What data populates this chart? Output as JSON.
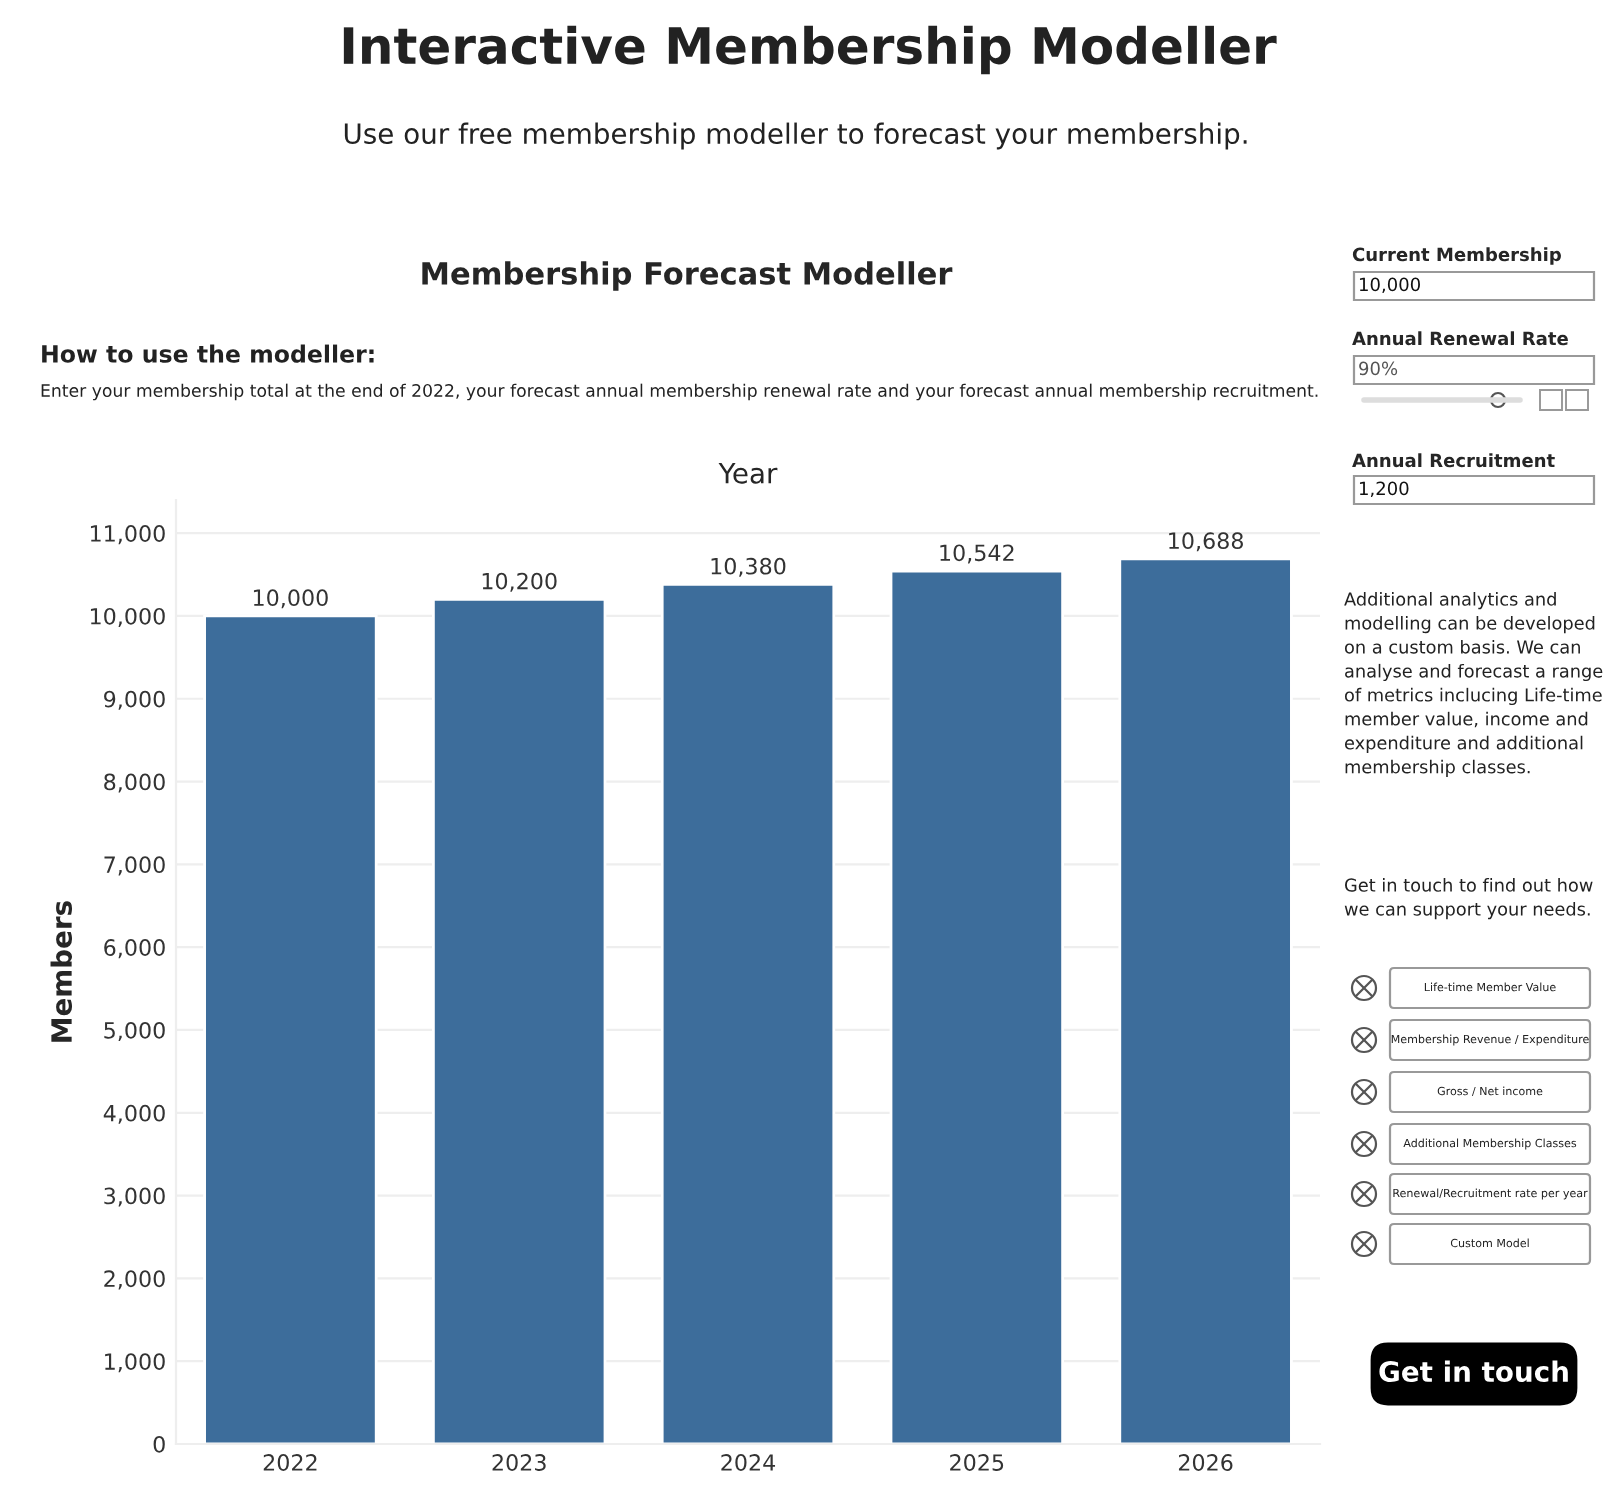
{
  "chart_data": [
    {
      "type": "bar",
      "title": "Membership Forecast Modeller",
      "xlabel": "Year",
      "ylabel": "Members",
      "annotations": [
        "Interactive Membership Modeller",
        "Use our free membership modeller to forecast your membership.",
        "How to use the modeller:",
        "Enter your membership total at the end of 2022, your forecast annual membership renewal rate and your forecast annual membership recruitment."
      ],
      "categories": [
        "2022",
        "2023",
        "2024",
        "2025",
        "2026"
      ],
      "values": [
        10000,
        10200,
        10380,
        10542,
        10688
      ],
      "value_labels": [
        "10,000",
        "10,200",
        "10,380",
        "10,542",
        "10,688"
      ],
      "color": "#3d6d9b",
      "ylim": [
        0,
        11400
      ],
      "yticks": [
        0,
        {
          "value": 1000,
          "label": "1,000"
        },
        {
          "value": 2000,
          "label": "2,000"
        },
        {
          "value": 3000,
          "label": "3,000"
        },
        {
          "value": 4000,
          "label": "4,000"
        },
        {
          "value": 5000,
          "label": "5,000"
        },
        {
          "value": 6000,
          "label": "6,000"
        },
        {
          "value": 7000,
          "label": "7,000"
        },
        {
          "value": 8000,
          "label": "8,000"
        },
        {
          "value": 9000,
          "label": "9,000"
        },
        {
          "value": 10000,
          "label": "10,000"
        },
        {
          "value": 11000,
          "label": "11,000"
        }
      ],
      "grid": "y"
    },
    {
      "type": "other",
      "annotations": [
        "Current Membership",
        "10,000",
        "Annual Renewal Rate",
        "90%",
        "Annual Recruitment",
        "1,200",
        "Additional analytics and modelling can be developed on a custom basis. We can analyse and forecast a range of metrics inclucing Life-time member value, income and expenditure and additional membership classes.",
        "Get in touch to find out how we can support your needs.",
        "Life-time Member Value",
        "Membership Revenue / Expenditure",
        "Gross / Net income",
        "Additional Membership Classes",
        "Renewal/Recruitment rate per year",
        "Custom Model",
        "Get in touch"
      ]
    }
  ]
}
